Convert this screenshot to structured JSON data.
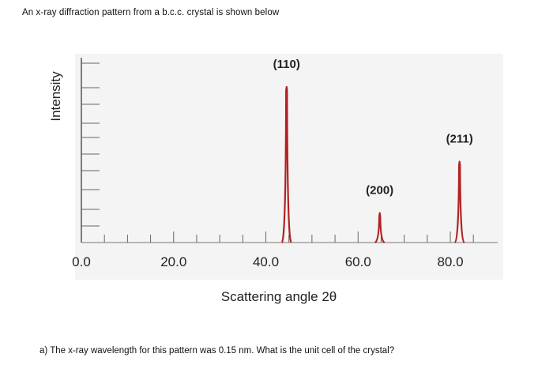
{
  "intro_text": "An x-ray diffraction pattern from a  b.c.c. crystal is shown below",
  "question_text": "a)  The x-ray wavelength for this pattern was 0.15 nm. What is the unit cell of the crystal?",
  "chart_data": {
    "type": "line",
    "title": "",
    "xlabel": "Scattering angle 2θ",
    "ylabel": "Intensity",
    "xlim": [
      0,
      90
    ],
    "x_ticks": [
      "0.0",
      "20.0",
      "40.0",
      "60.0",
      "80.0"
    ],
    "x_tick_values": [
      0,
      20,
      40,
      60,
      80
    ],
    "y_ticks_shown": false,
    "grid": false,
    "line_color": "#b22222",
    "background_color": "#f4f4f4",
    "peaks": [
      {
        "label": "(110)",
        "two_theta": 44.5,
        "relative_intensity": 1.0
      },
      {
        "label": "(200)",
        "two_theta": 64.7,
        "relative_intensity": 0.19
      },
      {
        "label": "(211)",
        "two_theta": 82.0,
        "relative_intensity": 0.52
      }
    ]
  }
}
